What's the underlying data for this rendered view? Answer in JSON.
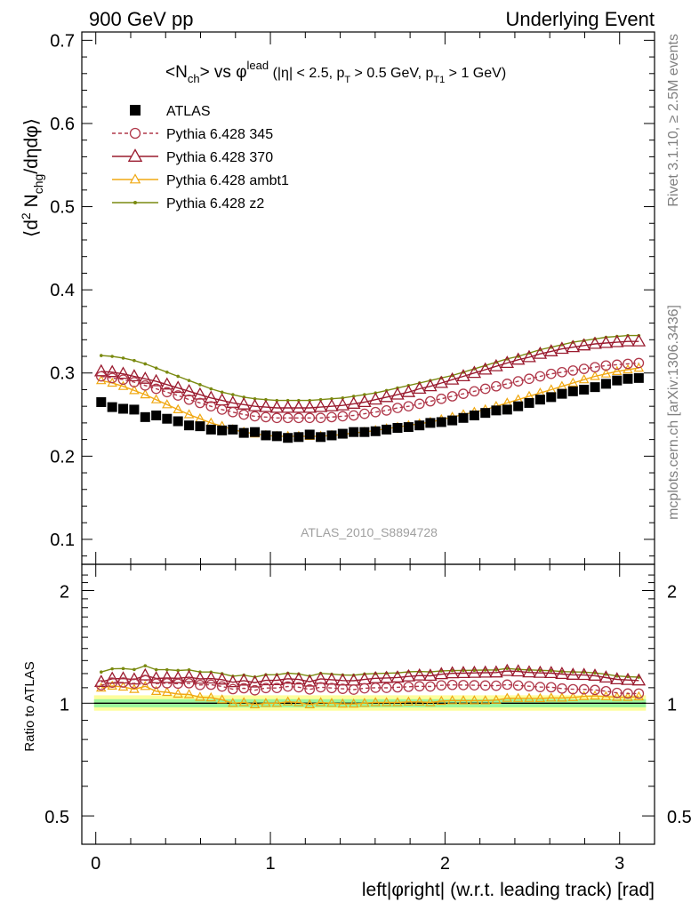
{
  "header": {
    "left": "900 GeV pp",
    "right": "Underlying Event"
  },
  "side_labels": {
    "rivet": "Rivet 3.1.10, ≥ 2.5M events",
    "mcplots": "mcplots.cern.ch [arXiv:1306.3436]"
  },
  "watermark": "ATLAS_2010_S8894728",
  "chart_data": [
    {
      "type": "scatter",
      "title": "<N_ch> vs φ^lead (|η| < 2.5, p_T > 0.5 GeV, p_T1 > 1 GeV)",
      "title_parts": {
        "main": "<N",
        "sub1": "ch",
        "mid": "> vs φ",
        "sup": "lead",
        "cond1": " (|η| < 2.5, p",
        "sub2": "T",
        "cond2": " > 0.5 GeV, p",
        "sub3": "T1",
        "cond3": " > 1 GeV)"
      },
      "ylabel": "⟨d² N_chg/dηdφ⟩",
      "ylabel_parts": {
        "a": "⟨d",
        "sup": "2",
        "b": " N",
        "sub": "chg",
        "c": "/dηdφ⟩"
      },
      "xlim": [
        -0.08,
        3.2
      ],
      "ylim": [
        0.07,
        0.71
      ],
      "yticks": [
        0.1,
        0.2,
        0.3,
        0.4,
        0.5,
        0.6,
        0.7
      ],
      "ytick_labels": [
        "0.1",
        "0.2",
        "0.3",
        "0.4",
        "0.5",
        "0.6",
        "0.7"
      ],
      "legend_position": "top-left",
      "x": [
        0.031,
        0.094,
        0.157,
        0.22,
        0.283,
        0.346,
        0.408,
        0.471,
        0.534,
        0.597,
        0.66,
        0.723,
        0.785,
        0.848,
        0.911,
        0.974,
        1.037,
        1.1,
        1.162,
        1.225,
        1.288,
        1.351,
        1.414,
        1.477,
        1.539,
        1.602,
        1.665,
        1.728,
        1.791,
        1.854,
        1.916,
        1.979,
        2.042,
        2.105,
        2.168,
        2.231,
        2.293,
        2.356,
        2.419,
        2.482,
        2.545,
        2.608,
        2.67,
        2.733,
        2.796,
        2.859,
        2.922,
        2.985,
        3.047,
        3.11
      ],
      "series": [
        {
          "name": "ATLAS",
          "color": "#000000",
          "marker": "square",
          "values": [
            0.265,
            0.259,
            0.257,
            0.256,
            0.247,
            0.249,
            0.245,
            0.242,
            0.237,
            0.236,
            0.232,
            0.231,
            0.232,
            0.228,
            0.229,
            0.225,
            0.224,
            0.222,
            0.223,
            0.226,
            0.223,
            0.225,
            0.227,
            0.229,
            0.229,
            0.23,
            0.232,
            0.234,
            0.235,
            0.237,
            0.24,
            0.241,
            0.243,
            0.246,
            0.249,
            0.252,
            0.255,
            0.256,
            0.26,
            0.264,
            0.268,
            0.271,
            0.275,
            0.278,
            0.28,
            0.283,
            0.287,
            0.291,
            0.293,
            0.294
          ]
        },
        {
          "name": "Pythia 6.428 345",
          "color": "#b0384a",
          "marker": "open-circle",
          "values": [
            0.296,
            0.294,
            0.292,
            0.289,
            0.285,
            0.281,
            0.277,
            0.273,
            0.268,
            0.264,
            0.26,
            0.256,
            0.253,
            0.25,
            0.248,
            0.247,
            0.246,
            0.246,
            0.246,
            0.246,
            0.246,
            0.247,
            0.248,
            0.249,
            0.251,
            0.253,
            0.255,
            0.258,
            0.26,
            0.263,
            0.266,
            0.269,
            0.272,
            0.275,
            0.278,
            0.281,
            0.284,
            0.287,
            0.29,
            0.293,
            0.296,
            0.299,
            0.301,
            0.303,
            0.305,
            0.307,
            0.309,
            0.31,
            0.311,
            0.312
          ]
        },
        {
          "name": "Pythia 6.428 370",
          "color": "#9a1b2f",
          "marker": "open-triangle",
          "values": [
            0.302,
            0.301,
            0.299,
            0.296,
            0.293,
            0.29,
            0.286,
            0.282,
            0.278,
            0.274,
            0.27,
            0.267,
            0.264,
            0.262,
            0.26,
            0.259,
            0.258,
            0.258,
            0.258,
            0.258,
            0.259,
            0.26,
            0.261,
            0.263,
            0.265,
            0.268,
            0.271,
            0.274,
            0.277,
            0.281,
            0.284,
            0.288,
            0.292,
            0.296,
            0.3,
            0.304,
            0.308,
            0.312,
            0.316,
            0.319,
            0.323,
            0.326,
            0.329,
            0.331,
            0.333,
            0.335,
            0.336,
            0.337,
            0.338,
            0.338
          ]
        },
        {
          "name": "Pythia 6.428 ambt1",
          "color": "#f0a812",
          "marker": "open-triangle-small",
          "values": [
            0.291,
            0.288,
            0.284,
            0.279,
            0.274,
            0.268,
            0.262,
            0.256,
            0.25,
            0.245,
            0.24,
            0.236,
            0.232,
            0.229,
            0.227,
            0.225,
            0.224,
            0.224,
            0.224,
            0.224,
            0.224,
            0.225,
            0.226,
            0.228,
            0.229,
            0.231,
            0.233,
            0.235,
            0.237,
            0.239,
            0.241,
            0.244,
            0.247,
            0.25,
            0.253,
            0.256,
            0.26,
            0.264,
            0.268,
            0.272,
            0.276,
            0.28,
            0.284,
            0.288,
            0.292,
            0.296,
            0.299,
            0.302,
            0.304,
            0.306
          ]
        },
        {
          "name": "Pythia 6.428 z2",
          "color": "#7a8a10",
          "marker": "dot",
          "values": [
            0.321,
            0.32,
            0.318,
            0.315,
            0.311,
            0.306,
            0.301,
            0.296,
            0.291,
            0.286,
            0.281,
            0.277,
            0.274,
            0.271,
            0.269,
            0.268,
            0.267,
            0.267,
            0.267,
            0.267,
            0.268,
            0.269,
            0.27,
            0.272,
            0.274,
            0.276,
            0.279,
            0.282,
            0.285,
            0.288,
            0.291,
            0.294,
            0.297,
            0.301,
            0.305,
            0.309,
            0.313,
            0.317,
            0.32,
            0.324,
            0.328,
            0.331,
            0.334,
            0.337,
            0.339,
            0.341,
            0.343,
            0.344,
            0.345,
            0.345
          ]
        }
      ]
    },
    {
      "type": "scatter",
      "title": "",
      "xlabel": "left|φright| (w.r.t. leading track) [rad]",
      "ylabel": "Ratio to ATLAS",
      "ylog": true,
      "xlim": [
        -0.08,
        3.2
      ],
      "ylim": [
        0.42,
        2.35
      ],
      "xticks": [
        0,
        1,
        2,
        3
      ],
      "xtick_labels": [
        "0",
        "1",
        "2",
        "3"
      ],
      "yticks": [
        0.5,
        1,
        2
      ],
      "ytick_labels": [
        "0.5",
        "1",
        "2"
      ],
      "bands": [
        {
          "name": "outer",
          "color": "#fdfd9c",
          "lo": 0.955,
          "hi": 1.05
        },
        {
          "name": "inner",
          "color": "#9bf59b",
          "lo": 0.975,
          "hi": 1.025
        }
      ],
      "reference": 1.0
    }
  ]
}
